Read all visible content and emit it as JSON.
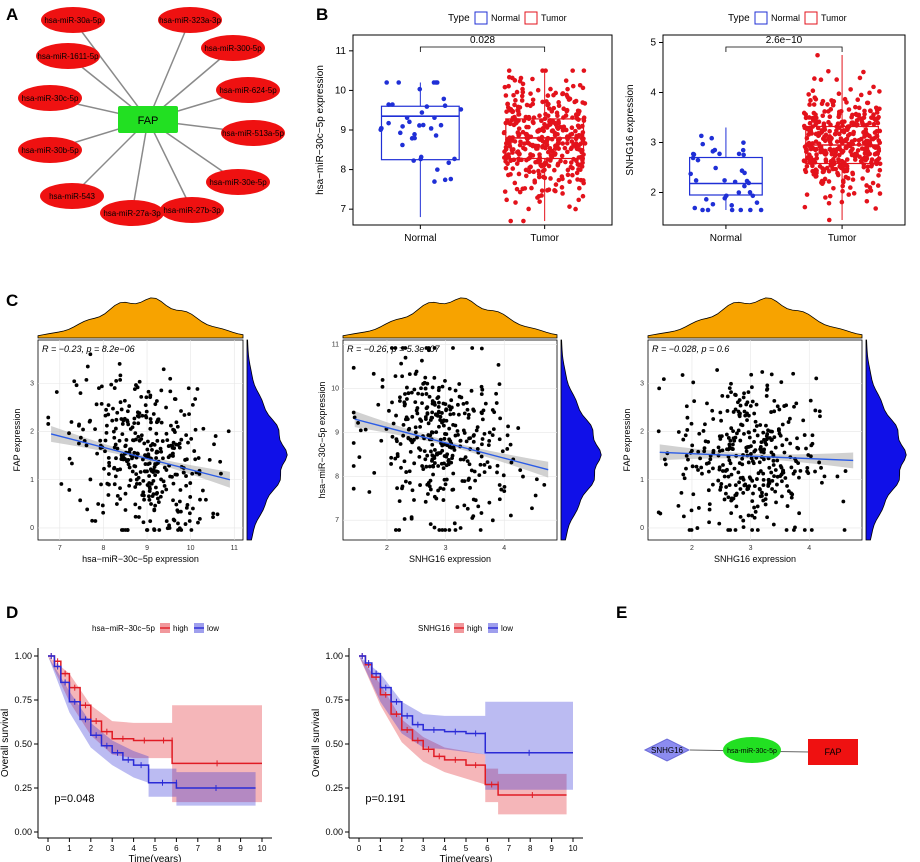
{
  "panels": {
    "A": "A",
    "B": "B",
    "C": "C",
    "D": "D",
    "E": "E"
  },
  "colors": {
    "normal": "#1f2fd6",
    "tumor": "#e3121b",
    "hub": "#22e022",
    "node": "#ef1111",
    "density_x": "#f7a300",
    "density_y": "#1010e8",
    "fit": "#2b5ce6",
    "ci": "#bdbdbd",
    "hi": "#e01b24",
    "lo": "#2a2ad6",
    "dia": "#8c8cf0"
  },
  "panelA": {
    "hub": "FAP",
    "nodes": [
      "hsa-miR-30a-5p",
      "hsa-miR-323a-3p",
      "hsa-miR-300-5p",
      "hsa-miR-624-5p",
      "hsa-miR-513a-5p",
      "hsa-miR-30e-5p",
      "hsa-miR-27b-3p",
      "hsa-miR-27a-3p",
      "hsa-miR-543",
      "hsa-miR-30b-5p",
      "hsa-miR-30c-5p",
      "hsa-miR-1611-5p"
    ]
  },
  "panelB": {
    "legend_title": "Type",
    "legend_normal": "Normal",
    "legend_tumor": "Tumor",
    "plots": [
      {
        "ylabel": "hsa−miR−30c−5p expression",
        "pvalue": "0.028",
        "yticks": [
          "7",
          "8",
          "9",
          "10",
          "11"
        ],
        "ylim": [
          6.6,
          11.4
        ],
        "groups": [
          "Normal",
          "Tumor"
        ],
        "normal": {
          "min": 6.8,
          "q1": 8.25,
          "median": 9.35,
          "q3": 9.6,
          "max": 10.2
        },
        "tumor": {
          "min": 6.7,
          "q1": 8.28,
          "median": 8.8,
          "q3": 9.28,
          "max": 10.5
        }
      },
      {
        "ylabel": "SNHG16 expression",
        "pvalue": "2.6e−10",
        "yticks": [
          "2",
          "3",
          "4",
          "5"
        ],
        "ylim": [
          1.35,
          5.15
        ],
        "groups": [
          "Normal",
          "Tumor"
        ],
        "normal": {
          "min": 1.65,
          "q1": 1.95,
          "median": 2.18,
          "q3": 2.7,
          "max": 3.3
        },
        "tumor": {
          "min": 1.45,
          "q1": 2.58,
          "median": 2.95,
          "q3": 3.32,
          "max": 4.75
        }
      }
    ]
  },
  "panelC": [
    {
      "stat": "R = −0.23, p = 8.2e−06",
      "xlabel": "hsa−miR−30c−5p expression",
      "ylabel": "FAP expression",
      "xticks": [
        "7",
        "8",
        "9",
        "10",
        "11"
      ],
      "yticks": [
        "0",
        "1",
        "2",
        "3"
      ],
      "xlim": [
        6.5,
        11.2
      ],
      "ylim": [
        -0.25,
        3.9
      ],
      "fit": [
        [
          6.8,
          1.95
        ],
        [
          10.9,
          1.0
        ]
      ],
      "xcenter": 8.9,
      "ycenter": 1.5
    },
    {
      "stat": "R = −0.26, p = 5.3e−07",
      "xlabel": "SNHG16 expression",
      "ylabel": "hsa−miR−30c−5p expression",
      "xticks": [
        "2",
        "3",
        "4"
      ],
      "yticks": [
        "7",
        "8",
        "9",
        "10",
        "11"
      ],
      "xlim": [
        1.25,
        4.9
      ],
      "ylim": [
        6.55,
        11.1
      ],
      "fit": [
        [
          1.45,
          9.3
        ],
        [
          4.75,
          8.15
        ]
      ],
      "xcenter": 2.95,
      "ycenter": 8.75
    },
    {
      "stat": "R = −0.028, p = 0.6",
      "xlabel": "SNHG16 expression",
      "ylabel": "FAP expression",
      "xticks": [
        "2",
        "3",
        "4"
      ],
      "yticks": [
        "0",
        "1",
        "2",
        "3"
      ],
      "xlim": [
        1.25,
        4.9
      ],
      "ylim": [
        -0.25,
        3.9
      ],
      "fit": [
        [
          1.45,
          1.57
        ],
        [
          4.75,
          1.4
        ]
      ],
      "xcenter": 2.95,
      "ycenter": 1.5
    }
  ],
  "panelD": [
    {
      "legend_title": "hsa−miR−30c−5p",
      "high": "high",
      "low": "low",
      "pvalue": "p=0.048",
      "ylabel": "Overall survival",
      "xlabel": "Time(years)",
      "yticks": [
        "0.00",
        "0.25",
        "0.50",
        "0.75",
        "1.00"
      ],
      "xticks": [
        "0",
        "1",
        "2",
        "3",
        "4",
        "5",
        "6",
        "7",
        "8",
        "9",
        "10"
      ],
      "high_curve": [
        [
          0,
          1.0
        ],
        [
          0.3,
          0.97
        ],
        [
          0.6,
          0.9
        ],
        [
          1,
          0.82
        ],
        [
          1.5,
          0.72
        ],
        [
          2,
          0.63
        ],
        [
          2.5,
          0.57
        ],
        [
          3,
          0.53
        ],
        [
          4,
          0.52
        ],
        [
          5,
          0.52
        ],
        [
          5.8,
          0.52
        ],
        [
          5.8,
          0.39
        ],
        [
          10,
          0.39
        ]
      ],
      "low_curve": [
        [
          0,
          1.0
        ],
        [
          0.3,
          0.94
        ],
        [
          0.6,
          0.85
        ],
        [
          1,
          0.74
        ],
        [
          1.5,
          0.64
        ],
        [
          2,
          0.55
        ],
        [
          2.5,
          0.49
        ],
        [
          3,
          0.45
        ],
        [
          3.5,
          0.41
        ],
        [
          4,
          0.38
        ],
        [
          4.7,
          0.35
        ],
        [
          4.7,
          0.28
        ],
        [
          6,
          0.28
        ],
        [
          6,
          0.25
        ],
        [
          9.7,
          0.25
        ]
      ],
      "high_band": [
        [
          0,
          1,
          1
        ],
        [
          1,
          0.9,
          0.74
        ],
        [
          2,
          0.72,
          0.55
        ],
        [
          3,
          0.63,
          0.44
        ],
        [
          4,
          0.62,
          0.42
        ],
        [
          5.8,
          0.62,
          0.42
        ],
        [
          5.8,
          0.72,
          0.17
        ],
        [
          10,
          0.72,
          0.17
        ]
      ],
      "low_band": [
        [
          0,
          1,
          1
        ],
        [
          1,
          0.8,
          0.68
        ],
        [
          2,
          0.62,
          0.48
        ],
        [
          3,
          0.52,
          0.38
        ],
        [
          4,
          0.46,
          0.31
        ],
        [
          4.7,
          0.43,
          0.28
        ],
        [
          4.7,
          0.36,
          0.2
        ],
        [
          6,
          0.36,
          0.2
        ],
        [
          6,
          0.34,
          0.15
        ],
        [
          9.7,
          0.34,
          0.15
        ]
      ]
    },
    {
      "legend_title": "SNHG16",
      "high": "high",
      "low": "low",
      "pvalue": "p=0.191",
      "ylabel": "Overall survival",
      "xlabel": "Time(years)",
      "yticks": [
        "0.00",
        "0.25",
        "0.50",
        "0.75",
        "1.00"
      ],
      "xticks": [
        "0",
        "1",
        "2",
        "3",
        "4",
        "5",
        "6",
        "7",
        "8",
        "9",
        "10"
      ],
      "high_curve": [
        [
          0,
          1.0
        ],
        [
          0.3,
          0.95
        ],
        [
          0.6,
          0.88
        ],
        [
          1,
          0.78
        ],
        [
          1.5,
          0.67
        ],
        [
          2,
          0.58
        ],
        [
          2.5,
          0.52
        ],
        [
          3,
          0.47
        ],
        [
          3.5,
          0.43
        ],
        [
          4,
          0.41
        ],
        [
          5,
          0.38
        ],
        [
          5.9,
          0.36
        ],
        [
          5.9,
          0.27
        ],
        [
          6.5,
          0.27
        ],
        [
          6.5,
          0.21
        ],
        [
          9.7,
          0.21
        ]
      ],
      "low_curve": [
        [
          0,
          1.0
        ],
        [
          0.3,
          0.96
        ],
        [
          0.6,
          0.9
        ],
        [
          1,
          0.82
        ],
        [
          1.5,
          0.74
        ],
        [
          2,
          0.66
        ],
        [
          2.5,
          0.61
        ],
        [
          3,
          0.58
        ],
        [
          4,
          0.57
        ],
        [
          5,
          0.56
        ],
        [
          5.9,
          0.55
        ],
        [
          5.9,
          0.45
        ],
        [
          10,
          0.45
        ]
      ],
      "high_band": [
        [
          0,
          1,
          1
        ],
        [
          1,
          0.84,
          0.72
        ],
        [
          2,
          0.64,
          0.51
        ],
        [
          3,
          0.54,
          0.4
        ],
        [
          4,
          0.48,
          0.34
        ],
        [
          5.9,
          0.44,
          0.27
        ],
        [
          5.9,
          0.36,
          0.17
        ],
        [
          6.5,
          0.36,
          0.17
        ],
        [
          6.5,
          0.33,
          0.1
        ],
        [
          9.7,
          0.33,
          0.1
        ]
      ],
      "low_band": [
        [
          0,
          1,
          1
        ],
        [
          1,
          0.9,
          0.74
        ],
        [
          2,
          0.74,
          0.56
        ],
        [
          3,
          0.67,
          0.48
        ],
        [
          4,
          0.66,
          0.47
        ],
        [
          5.9,
          0.66,
          0.44
        ],
        [
          5.9,
          0.74,
          0.24
        ],
        [
          10,
          0.74,
          0.24
        ]
      ]
    }
  ],
  "panelE": {
    "nodes": [
      "SNHG16",
      "hsa-miR-30c-5p",
      "FAP"
    ]
  }
}
